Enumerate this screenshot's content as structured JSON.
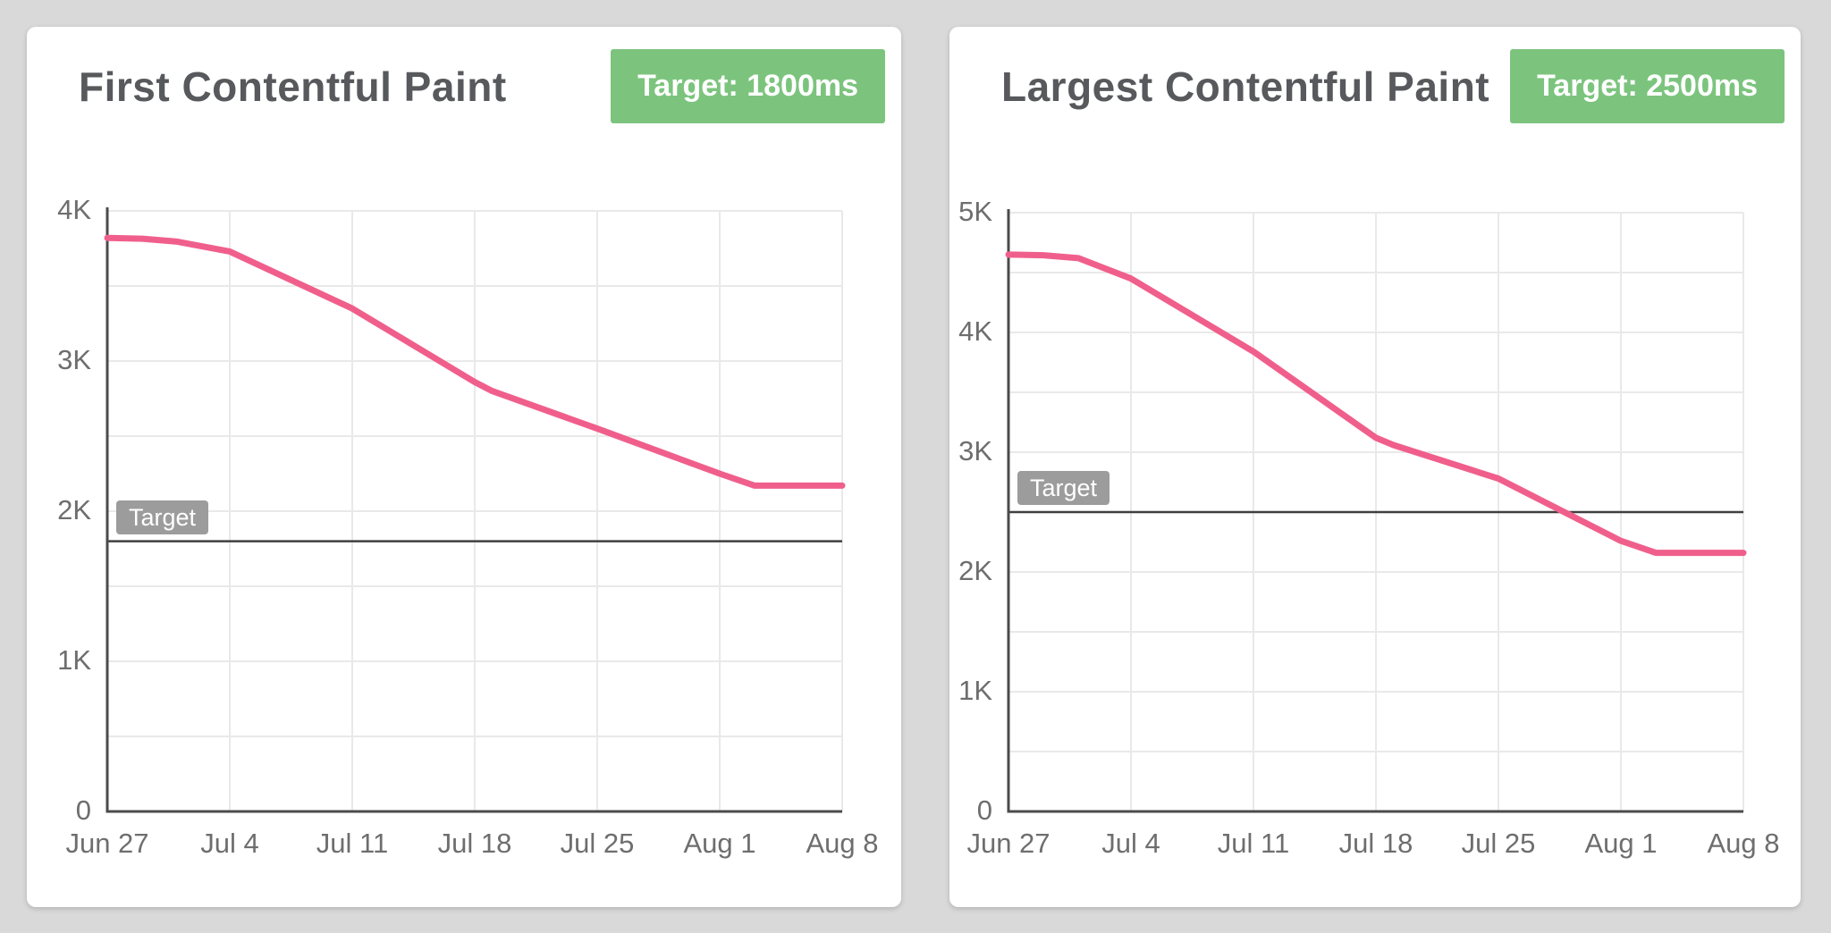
{
  "page": {
    "background": "#d9d9d9",
    "card_bg": "#ffffff",
    "accent_green": "#7cc47e",
    "badge_text_color": "#ffffff",
    "line_color": "#f05f8c",
    "grid_color": "#e9e9e9",
    "axis_color": "#4b4b4b",
    "target_line_color": "#3f3f3f",
    "target_chip_bg": "#9c9c9c",
    "title_color": "#57595c",
    "tick_color": "#6e6e6e"
  },
  "chart_data": [
    {
      "type": "line",
      "title": "First Contentful Paint",
      "badge_label": "Target: 1800ms",
      "unit": "ms",
      "x_tick_labels": [
        "Jun 27",
        "Jul 4",
        "Jul 11",
        "Jul 18",
        "Jul 25",
        "Aug 1",
        "Aug 8"
      ],
      "x_tick_days": [
        0,
        7,
        14,
        21,
        28,
        35,
        42
      ],
      "y_tick_labels": [
        "0",
        "1K",
        "2K",
        "3K",
        "4K"
      ],
      "ylim": [
        0,
        4000
      ],
      "y_grid_step": 500,
      "y_label_step": 1000,
      "grid": true,
      "legend": false,
      "target": {
        "label": "Target",
        "value": 1800
      },
      "series": [
        {
          "name": "First Contentful Paint (ms)",
          "x_days": [
            0,
            2,
            4,
            7,
            14,
            21,
            22,
            28,
            35,
            37,
            42
          ],
          "values": [
            3820,
            3815,
            3795,
            3730,
            3350,
            2860,
            2800,
            2550,
            2250,
            2170,
            2170
          ]
        }
      ]
    },
    {
      "type": "line",
      "title": "Largest Contentful Paint",
      "badge_label": "Target: 2500ms",
      "unit": "ms",
      "x_tick_labels": [
        "Jun 27",
        "Jul 4",
        "Jul 11",
        "Jul 18",
        "Jul 25",
        "Aug 1",
        "Aug 8"
      ],
      "x_tick_days": [
        0,
        7,
        14,
        21,
        28,
        35,
        42
      ],
      "y_tick_labels": [
        "0",
        "1K",
        "2K",
        "3K",
        "4K",
        "5K"
      ],
      "ylim": [
        0,
        5000
      ],
      "y_grid_step": 500,
      "y_label_step": 1000,
      "grid": true,
      "legend": false,
      "target": {
        "label": "Target",
        "value": 2500
      },
      "series": [
        {
          "name": "Largest Contentful Paint (ms)",
          "x_days": [
            0,
            2,
            4,
            7,
            14,
            21,
            22,
            28,
            35,
            37,
            42
          ],
          "values": [
            4650,
            4645,
            4620,
            4450,
            3840,
            3120,
            3060,
            2780,
            2260,
            2160,
            2160
          ]
        }
      ]
    }
  ]
}
